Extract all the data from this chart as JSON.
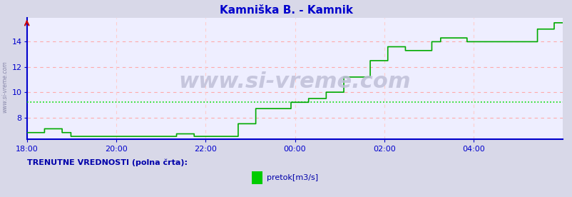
{
  "title": "Kamniška B. - Kamnik",
  "title_color": "#0000cc",
  "fig_bg_color": "#d8d8e8",
  "plot_bg_color": "#eeeeff",
  "ylim": [
    6.3,
    15.9
  ],
  "xlim": [
    0,
    720
  ],
  "yticks": [
    8,
    10,
    12,
    14
  ],
  "xtick_labels": [
    "18:00",
    "20:00",
    "22:00",
    "00:00",
    "02:00",
    "04:00"
  ],
  "xtick_positions": [
    0,
    120,
    240,
    360,
    480,
    600
  ],
  "avg_line_y": 9.2,
  "avg_line_color": "#00dd00",
  "line_color": "#00aa00",
  "grid_color_h": "#ffaaaa",
  "grid_color_v": "#ffcccc",
  "watermark": "www.si-vreme.com",
  "watermark_color": "#c0c0d8",
  "left_label": "www.si-vreme.com",
  "left_label_color": "#8888aa",
  "legend_label": "pretok[m3/s]",
  "legend_label2": "TRENUTNE VREDNOSTI (polna črta):",
  "legend_text_color": "#0000aa",
  "legend_box_color": "#00cc00",
  "flow_data": [
    6.8,
    6.8,
    6.8,
    6.8,
    6.8,
    6.8,
    6.8,
    6.8,
    6.8,
    6.8,
    6.8,
    6.8,
    6.8,
    6.8,
    6.8,
    6.8,
    6.8,
    6.8,
    6.8,
    6.8,
    7.1,
    7.1,
    7.1,
    7.1,
    7.1,
    7.1,
    7.1,
    7.1,
    7.1,
    7.1,
    7.1,
    7.1,
    7.1,
    7.1,
    7.1,
    7.1,
    7.1,
    7.1,
    7.1,
    7.1,
    6.8,
    6.8,
    6.8,
    6.8,
    6.8,
    6.8,
    6.8,
    6.8,
    6.8,
    6.8,
    6.5,
    6.5,
    6.5,
    6.5,
    6.5,
    6.5,
    6.5,
    6.5,
    6.5,
    6.5,
    6.5,
    6.5,
    6.5,
    6.5,
    6.5,
    6.5,
    6.5,
    6.5,
    6.5,
    6.5,
    6.5,
    6.5,
    6.5,
    6.5,
    6.5,
    6.5,
    6.5,
    6.5,
    6.5,
    6.5,
    6.5,
    6.5,
    6.5,
    6.5,
    6.5,
    6.5,
    6.5,
    6.5,
    6.5,
    6.5,
    6.5,
    6.5,
    6.5,
    6.5,
    6.5,
    6.5,
    6.5,
    6.5,
    6.5,
    6.5,
    6.5,
    6.5,
    6.5,
    6.5,
    6.5,
    6.5,
    6.5,
    6.5,
    6.5,
    6.5,
    6.5,
    6.5,
    6.5,
    6.5,
    6.5,
    6.5,
    6.5,
    6.5,
    6.5,
    6.5,
    6.5,
    6.5,
    6.5,
    6.5,
    6.5,
    6.5,
    6.5,
    6.5,
    6.5,
    6.5,
    6.5,
    6.5,
    6.5,
    6.5,
    6.5,
    6.5,
    6.5,
    6.5,
    6.5,
    6.5,
    6.5,
    6.5,
    6.5,
    6.5,
    6.5,
    6.5,
    6.5,
    6.5,
    6.5,
    6.5,
    6.5,
    6.5,
    6.5,
    6.5,
    6.5,
    6.5,
    6.5,
    6.5,
    6.5,
    6.5,
    6.5,
    6.5,
    6.5,
    6.5,
    6.5,
    6.5,
    6.5,
    6.5,
    6.5,
    6.5,
    6.7,
    6.7,
    6.7,
    6.7,
    6.7,
    6.7,
    6.7,
    6.7,
    6.7,
    6.7,
    6.7,
    6.7,
    6.7,
    6.7,
    6.7,
    6.7,
    6.7,
    6.7,
    6.7,
    6.7,
    6.5,
    6.5,
    6.5,
    6.5,
    6.5,
    6.5,
    6.5,
    6.5,
    6.5,
    6.5,
    6.5,
    6.5,
    6.5,
    6.5,
    6.5,
    6.5,
    6.5,
    6.5,
    6.5,
    6.5,
    6.5,
    6.5,
    6.5,
    6.5,
    6.5,
    6.5,
    6.5,
    6.5,
    6.5,
    6.5,
    6.5,
    6.5,
    6.5,
    6.5,
    6.5,
    6.5,
    6.5,
    6.5,
    6.5,
    6.5,
    6.5,
    6.5,
    6.5,
    6.5,
    6.5,
    6.5,
    6.5,
    6.5,
    6.5,
    6.5,
    7.5,
    7.5,
    7.5,
    7.5,
    7.5,
    7.5,
    7.5,
    7.5,
    7.5,
    7.5,
    7.5,
    7.5,
    7.5,
    7.5,
    7.5,
    7.5,
    7.5,
    7.5,
    7.5,
    7.5,
    8.7,
    8.7,
    8.7,
    8.7,
    8.7,
    8.7,
    8.7,
    8.7,
    8.7,
    8.7,
    8.7,
    8.7,
    8.7,
    8.7,
    8.7,
    8.7,
    8.7,
    8.7,
    8.7,
    8.7,
    8.7,
    8.7,
    8.7,
    8.7,
    8.7,
    8.7,
    8.7,
    8.7,
    8.7,
    8.7,
    8.7,
    8.7,
    8.7,
    8.7,
    8.7,
    8.7,
    8.7,
    8.7,
    8.7,
    8.7,
    9.2,
    9.2,
    9.2,
    9.2,
    9.2,
    9.2,
    9.2,
    9.2,
    9.2,
    9.2,
    9.2,
    9.2,
    9.2,
    9.2,
    9.2,
    9.2,
    9.2,
    9.2,
    9.2,
    9.2,
    9.5,
    9.5,
    9.5,
    9.5,
    9.5,
    9.5,
    9.5,
    9.5,
    9.5,
    9.5,
    9.5,
    9.5,
    9.5,
    9.5,
    9.5,
    9.5,
    9.5,
    9.5,
    9.5,
    9.5,
    10.0,
    10.0,
    10.0,
    10.0,
    10.0,
    10.0,
    10.0,
    10.0,
    10.0,
    10.0,
    10.0,
    10.0,
    10.0,
    10.0,
    10.0,
    10.0,
    10.0,
    10.0,
    10.0,
    10.0,
    11.2,
    11.2,
    11.2,
    11.2,
    11.2,
    11.2,
    11.2,
    11.2,
    11.2,
    11.2,
    11.2,
    11.2,
    11.2,
    11.2,
    11.2,
    11.2,
    11.2,
    11.2,
    11.2,
    11.2,
    11.2,
    11.2,
    11.2,
    11.2,
    11.2,
    11.2,
    11.2,
    11.2,
    11.2,
    11.2,
    12.5,
    12.5,
    12.5,
    12.5,
    12.5,
    12.5,
    12.5,
    12.5,
    12.5,
    12.5,
    12.5,
    12.5,
    12.5,
    12.5,
    12.5,
    12.5,
    12.5,
    12.5,
    12.5,
    12.5,
    13.6,
    13.6,
    13.6,
    13.6,
    13.6,
    13.6,
    13.6,
    13.6,
    13.6,
    13.6,
    13.6,
    13.6,
    13.6,
    13.6,
    13.6,
    13.6,
    13.6,
    13.6,
    13.6,
    13.6,
    13.3,
    13.3,
    13.3,
    13.3,
    13.3,
    13.3,
    13.3,
    13.3,
    13.3,
    13.3,
    13.3,
    13.3,
    13.3,
    13.3,
    13.3,
    13.3,
    13.3,
    13.3,
    13.3,
    13.3,
    13.3,
    13.3,
    13.3,
    13.3,
    13.3,
    13.3,
    13.3,
    13.3,
    13.3,
    13.3,
    14.0,
    14.0,
    14.0,
    14.0,
    14.0,
    14.0,
    14.0,
    14.0,
    14.0,
    14.0,
    14.3,
    14.3,
    14.3,
    14.3,
    14.3,
    14.3,
    14.3,
    14.3,
    14.3,
    14.3,
    14.3,
    14.3,
    14.3,
    14.3,
    14.3,
    14.3,
    14.3,
    14.3,
    14.3,
    14.3,
    14.3,
    14.3,
    14.3,
    14.3,
    14.3,
    14.3,
    14.3,
    14.3,
    14.3,
    14.3,
    14.0,
    14.0,
    14.0,
    14.0,
    14.0,
    14.0,
    14.0,
    14.0,
    14.0,
    14.0,
    14.0,
    14.0,
    14.0,
    14.0,
    14.0,
    14.0,
    14.0,
    14.0,
    14.0,
    14.0,
    14.0,
    14.0,
    14.0,
    14.0,
    14.0,
    14.0,
    14.0,
    14.0,
    14.0,
    14.0,
    14.0,
    14.0,
    14.0,
    14.0,
    14.0,
    14.0,
    14.0,
    14.0,
    14.0,
    14.0,
    14.0,
    14.0,
    14.0,
    14.0,
    14.0,
    14.0,
    14.0,
    14.0,
    14.0,
    14.0,
    14.0,
    14.0,
    14.0,
    14.0,
    14.0,
    14.0,
    14.0,
    14.0,
    14.0,
    14.0,
    14.0,
    14.0,
    14.0,
    14.0,
    14.0,
    14.0,
    14.0,
    14.0,
    14.0,
    14.0,
    14.0,
    14.0,
    14.0,
    14.0,
    14.0,
    14.0,
    14.0,
    14.0,
    14.0,
    14.0,
    15.0,
    15.0,
    15.0,
    15.0,
    15.0,
    15.0,
    15.0,
    15.0,
    15.0,
    15.0,
    15.0,
    15.0,
    15.0,
    15.0,
    15.0,
    15.0,
    15.0,
    15.0,
    15.0,
    15.5,
    15.5,
    15.5,
    15.5,
    15.5,
    15.5,
    15.5,
    15.5,
    15.5,
    15.5,
    15.5
  ]
}
